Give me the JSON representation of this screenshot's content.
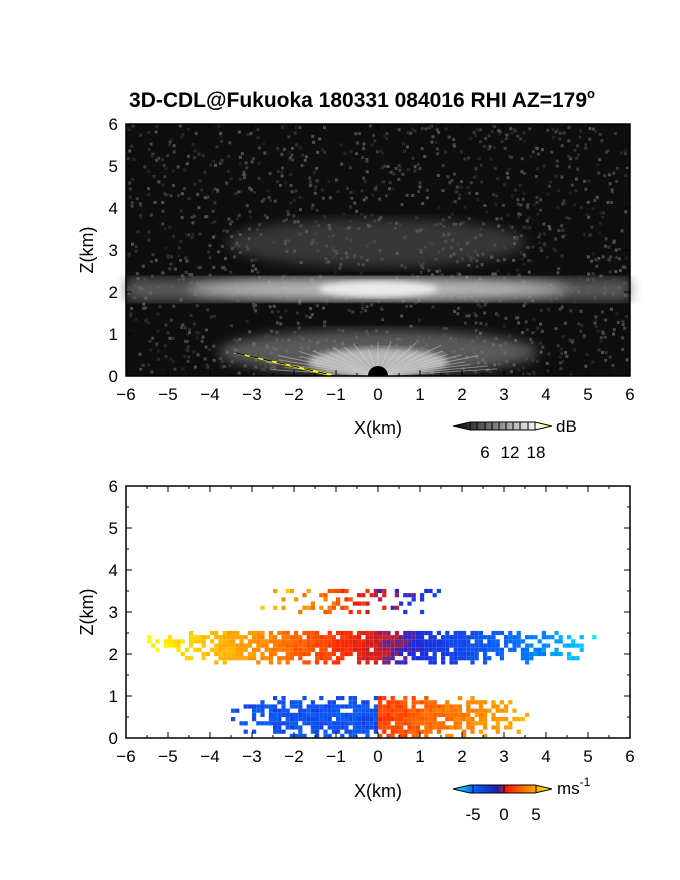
{
  "chart_data": [
    {
      "type": "heatmap",
      "panel": "backscatter",
      "title": "3D-CDL@Fukuoka 180331 084016 RHI AZ=179",
      "title_superscript": "o",
      "xlabel": "X(km)",
      "ylabel": "Z(km)",
      "xlim": [
        -6,
        6
      ],
      "ylim": [
        0,
        6
      ],
      "xticks": [
        "-6",
        "-5",
        "-4",
        "-3",
        "-2",
        "-1",
        "0",
        "1",
        "2",
        "3",
        "4",
        "5",
        "6"
      ],
      "yticks": [
        "0",
        "1",
        "2",
        "3",
        "4",
        "5",
        "6"
      ],
      "colorbar": {
        "unit": "dB",
        "ticks": [
          "6",
          "12",
          "18"
        ],
        "range": [
          0,
          21
        ],
        "colors": [
          "#000000",
          "#ffffff",
          "#ffff00"
        ]
      },
      "layers": [
        {
          "name": "aerosol layer",
          "x_range": [
            -6,
            6
          ],
          "z_center": 1.95,
          "z_thickness": 0.35,
          "peak_db": 19
        },
        {
          "name": "upper cloud",
          "x_range": [
            -1.8,
            2.0
          ],
          "z_center": 3.1,
          "z_thickness": 0.5,
          "peak_db": 8
        },
        {
          "name": "boundary layer",
          "x_range": [
            -1.8,
            2.3
          ],
          "z_center": 0.45,
          "z_thickness": 0.8,
          "peak_db": 12
        }
      ],
      "ground_echo": {
        "x_range": [
          -3.4,
          -0.9
        ],
        "z_range": [
          0.52,
          0.0
        ],
        "color": "#ffff00"
      }
    },
    {
      "type": "heatmap",
      "panel": "doppler velocity",
      "xlabel": "X(km)",
      "ylabel": "Z(km)",
      "xlim": [
        -6,
        6
      ],
      "ylim": [
        0,
        6
      ],
      "xticks": [
        "-6",
        "-5",
        "-4",
        "-3",
        "-2",
        "-1",
        "0",
        "1",
        "2",
        "3",
        "4",
        "5",
        "6"
      ],
      "yticks": [
        "0",
        "1",
        "2",
        "3",
        "4",
        "5",
        "6"
      ],
      "colorbar": {
        "unit": "ms",
        "unit_superscript": "-1",
        "ticks": [
          "-5",
          "0",
          "5"
        ],
        "range": [
          -7,
          7
        ],
        "colors": [
          "#00ffff",
          "#0064ff",
          "#1e1eaa",
          "#ff1e00",
          "#ff8c00",
          "#ffff00"
        ]
      },
      "velocity_structure": [
        {
          "z_range": [
            1.75,
            2.55
          ],
          "x_range": [
            -5.5,
            5.1
          ],
          "description": "radial velocity",
          "left_ms": 6.5,
          "right_ms": -6.5
        },
        {
          "z_range": [
            2.95,
            3.5
          ],
          "x_range": [
            -2.8,
            1.6
          ],
          "left_ms": 4,
          "right_ms": -3
        },
        {
          "z_range": [
            0.0,
            0.9
          ],
          "x_range": [
            -3.5,
            3.6
          ],
          "left_ms": -3.5,
          "right_ms": 3.5
        }
      ]
    }
  ]
}
